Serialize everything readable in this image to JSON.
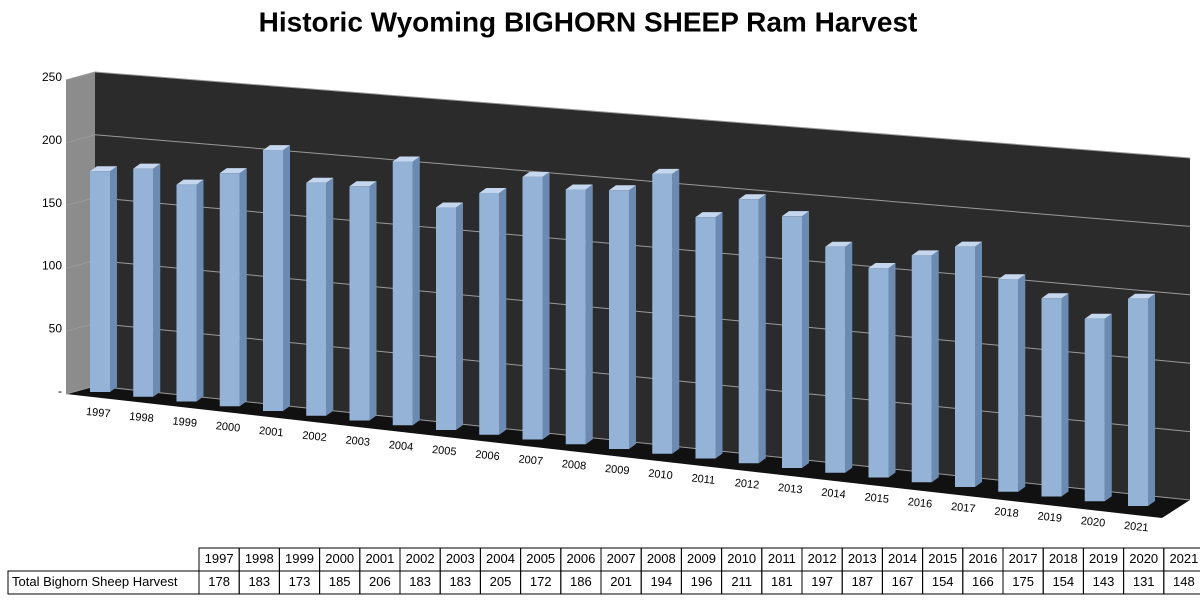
{
  "chart_data": {
    "type": "bar",
    "title": "Historic Wyoming BIGHORN SHEEP Ram Harvest",
    "categories": [
      "1997",
      "1998",
      "1999",
      "2000",
      "2001",
      "2002",
      "2003",
      "2004",
      "2005",
      "2006",
      "2007",
      "2008",
      "2009",
      "2010",
      "2011",
      "2012",
      "2013",
      "2014",
      "2015",
      "2016",
      "2017",
      "2018",
      "2019",
      "2020",
      "2021"
    ],
    "series": [
      {
        "name": "Total Bighorn Sheep Harvest",
        "color": "#95b3d7",
        "values": [
          178,
          183,
          173,
          185,
          206,
          183,
          183,
          205,
          172,
          186,
          201,
          194,
          196,
          211,
          181,
          197,
          187,
          167,
          154,
          166,
          175,
          154,
          143,
          131,
          148
        ]
      }
    ],
    "ylim": [
      0,
      250
    ],
    "yticks": [
      {
        "value": 0,
        "label": "-"
      },
      50,
      100,
      150,
      200,
      250
    ],
    "grid": true
  }
}
